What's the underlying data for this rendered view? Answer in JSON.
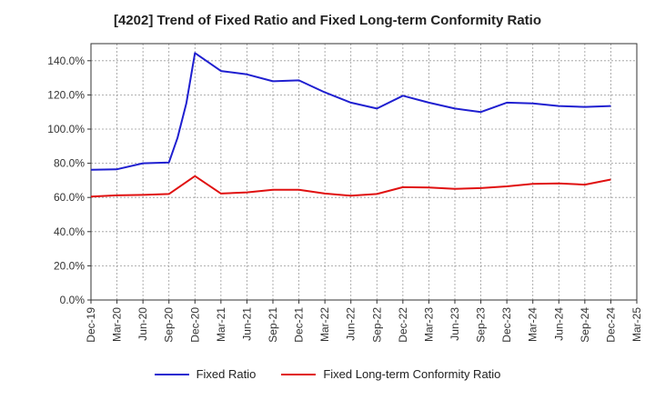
{
  "chart_data": {
    "type": "line",
    "title": "[4202]  Trend of Fixed Ratio and Fixed Long-term Conformity Ratio",
    "xlabel": "",
    "ylabel": "",
    "x": [
      "Dec-19",
      "Mar-20",
      "Jun-20",
      "Sep-20",
      "Dec-20",
      "Mar-21",
      "Jun-21",
      "Sep-21",
      "Dec-21",
      "Mar-22",
      "Jun-22",
      "Sep-22",
      "Dec-22",
      "Mar-23",
      "Jun-23",
      "Sep-23",
      "Dec-23",
      "Mar-24",
      "Jun-24",
      "Sep-24",
      "Dec-24",
      "Mar-25"
    ],
    "ylim": [
      0,
      150
    ],
    "yticks": [
      0,
      20,
      40,
      60,
      80,
      100,
      120,
      140
    ],
    "ytick_labels": [
      "0.0%",
      "20.0%",
      "40.0%",
      "60.0%",
      "80.0%",
      "100.0%",
      "120.0%",
      "140.0%"
    ],
    "grid": true,
    "legend_position": "bottom",
    "series": [
      {
        "name": "Fixed Ratio",
        "color": "#1f1fd0",
        "points": [
          {
            "x": "Dec-19",
            "y": 76.2
          },
          {
            "x": "Mar-20",
            "y": 76.5
          },
          {
            "x": "Jun-20",
            "y": 80.0
          },
          {
            "x": "Sep-20",
            "y": 80.5
          },
          {
            "x": "Oct-20",
            "y": 95.0
          },
          {
            "x": "Nov-20",
            "y": 115.0
          },
          {
            "x": "Dec-20",
            "y": 144.5
          },
          {
            "x": "Mar-21",
            "y": 134.0
          },
          {
            "x": "Jun-21",
            "y": 132.0
          },
          {
            "x": "Sep-21",
            "y": 128.0
          },
          {
            "x": "Dec-21",
            "y": 128.5
          },
          {
            "x": "Mar-22",
            "y": 121.5
          },
          {
            "x": "Jun-22",
            "y": 115.5
          },
          {
            "x": "Sep-22",
            "y": 112.0
          },
          {
            "x": "Dec-22",
            "y": 119.5
          },
          {
            "x": "Mar-23",
            "y": 115.5
          },
          {
            "x": "Jun-23",
            "y": 112.0
          },
          {
            "x": "Sep-23",
            "y": 110.0
          },
          {
            "x": "Dec-23",
            "y": 115.5
          },
          {
            "x": "Mar-24",
            "y": 115.0
          },
          {
            "x": "Jun-24",
            "y": 113.5
          },
          {
            "x": "Sep-24",
            "y": 113.0
          },
          {
            "x": "Dec-24",
            "y": 113.5
          }
        ]
      },
      {
        "name": "Fixed Long-term Conformity Ratio",
        "color": "#e01010",
        "points": [
          {
            "x": "Dec-19",
            "y": 60.5
          },
          {
            "x": "Mar-20",
            "y": 61.2
          },
          {
            "x": "Jun-20",
            "y": 61.5
          },
          {
            "x": "Sep-20",
            "y": 62.0
          },
          {
            "x": "Dec-20",
            "y": 72.5
          },
          {
            "x": "Mar-21",
            "y": 62.3
          },
          {
            "x": "Jun-21",
            "y": 63.0
          },
          {
            "x": "Sep-21",
            "y": 64.5
          },
          {
            "x": "Dec-21",
            "y": 64.5
          },
          {
            "x": "Mar-22",
            "y": 62.3
          },
          {
            "x": "Jun-22",
            "y": 61.0
          },
          {
            "x": "Sep-22",
            "y": 62.0
          },
          {
            "x": "Dec-22",
            "y": 66.0
          },
          {
            "x": "Mar-23",
            "y": 65.8
          },
          {
            "x": "Jun-23",
            "y": 65.0
          },
          {
            "x": "Sep-23",
            "y": 65.5
          },
          {
            "x": "Dec-23",
            "y": 66.5
          },
          {
            "x": "Mar-24",
            "y": 68.0
          },
          {
            "x": "Jun-24",
            "y": 68.2
          },
          {
            "x": "Sep-24",
            "y": 67.5
          },
          {
            "x": "Dec-24",
            "y": 70.5
          }
        ]
      }
    ]
  }
}
